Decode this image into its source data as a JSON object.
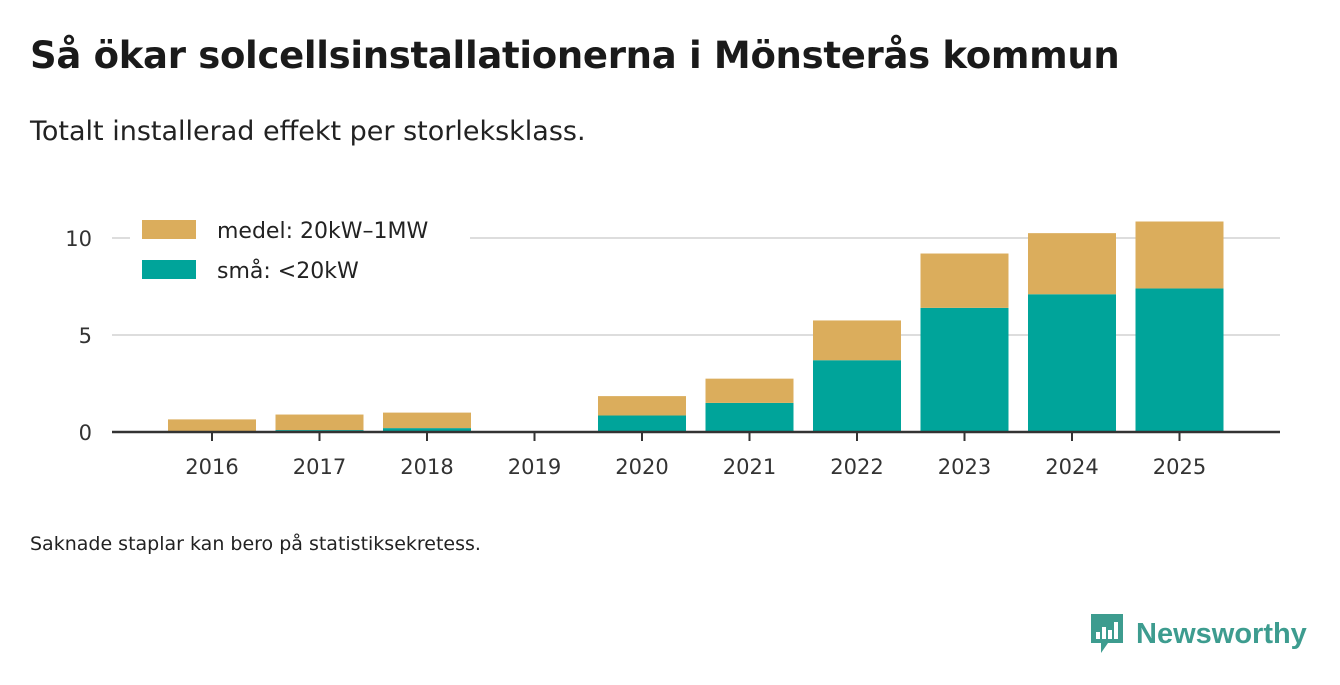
{
  "header": {
    "title": "Så ökar solcellsinstallationerna i Mönsterås kommun",
    "subtitle": "Totalt installerad effekt per storleksklass."
  },
  "footnote": "Saknade staplar kan bero på statistiksekretess.",
  "brand": {
    "name": "Newsworthy",
    "icon": "newsworthy-logo-icon",
    "color": "#3d9c8f"
  },
  "chart_data": {
    "type": "bar",
    "stacked": true,
    "title": "Så ökar solcellsinstallationerna i Mönsterås kommun",
    "subtitle": "Totalt installerad effekt per storleksklass.",
    "xlabel": "",
    "ylabel": "",
    "categories": [
      "2016",
      "2017",
      "2018",
      "2019",
      "2020",
      "2021",
      "2022",
      "2023",
      "2024",
      "2025"
    ],
    "series": [
      {
        "name": "små: <20kW",
        "color": "#00a49a",
        "values": [
          0.05,
          0.1,
          0.2,
          0,
          0.85,
          1.5,
          3.7,
          6.4,
          7.1,
          7.4
        ]
      },
      {
        "name": "medel: 20kW–1MW",
        "color": "#dbad5c",
        "values": [
          0.6,
          0.8,
          0.8,
          0,
          1.0,
          1.25,
          2.05,
          2.8,
          3.15,
          3.45
        ]
      }
    ],
    "yticks": [
      0,
      5,
      10
    ],
    "ylim": [
      0,
      11
    ],
    "grid": true,
    "legend": {
      "position": "top-left",
      "items": [
        "medel: 20kW–1MW",
        "små: <20kW"
      ]
    }
  }
}
